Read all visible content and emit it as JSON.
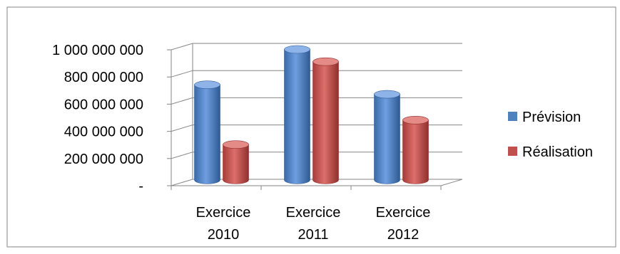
{
  "chart_data": {
    "type": "bar",
    "style": "3d-cylinder",
    "categories": [
      [
        "Exercice",
        "2010"
      ],
      [
        "Exercice",
        "2011"
      ],
      [
        "Exercice",
        "2012"
      ]
    ],
    "series": [
      {
        "name": "Prévision",
        "values": [
          700000000,
          960000000,
          630000000
        ]
      },
      {
        "name": "Réalisation",
        "values": [
          260000000,
          870000000,
          440000000
        ]
      }
    ],
    "ylim": [
      0,
      1000000000
    ],
    "y_ticks": [
      {
        "value": 0,
        "label": "-"
      },
      {
        "value": 200000000,
        "label": "200 000 000"
      },
      {
        "value": 400000000,
        "label": "400 000 000"
      },
      {
        "value": 600000000,
        "label": "600 000 000"
      },
      {
        "value": 800000000,
        "label": "800 000 000"
      },
      {
        "value": 1000000000,
        "label": "1 000 000 000"
      }
    ],
    "grid": true,
    "legend_position": "right",
    "colors": {
      "Prévision": "#4f81bd",
      "Réalisation": "#c0504d",
      "frame": "#868686",
      "grid": "#868686"
    }
  }
}
